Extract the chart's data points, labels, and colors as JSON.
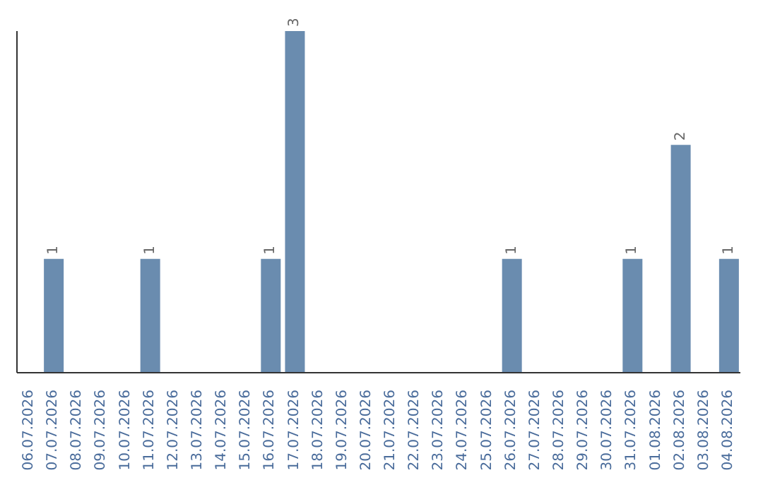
{
  "chart_data": {
    "type": "bar",
    "categories": [
      "06.07.2026",
      "07.07.2026",
      "08.07.2026",
      "09.07.2026",
      "10.07.2026",
      "11.07.2026",
      "12.07.2026",
      "13.07.2026",
      "14.07.2026",
      "15.07.2026",
      "16.07.2026",
      "17.07.2026",
      "18.07.2026",
      "19.07.2026",
      "20.07.2026",
      "21.07.2026",
      "22.07.2026",
      "23.07.2026",
      "24.07.2026",
      "25.07.2026",
      "26.07.2026",
      "27.07.2026",
      "28.07.2026",
      "29.07.2026",
      "30.07.2026",
      "31.07.2026",
      "01.08.2026",
      "02.08.2026",
      "03.08.2026",
      "04.08.2026"
    ],
    "values": [
      0,
      1,
      0,
      0,
      0,
      1,
      0,
      0,
      0,
      0,
      1,
      3,
      0,
      0,
      0,
      0,
      0,
      0,
      0,
      0,
      1,
      0,
      0,
      0,
      0,
      1,
      0,
      2,
      0,
      1
    ],
    "value_labels": [
      null,
      "1",
      null,
      null,
      null,
      "1",
      null,
      null,
      null,
      null,
      "1",
      "3",
      null,
      null,
      null,
      null,
      null,
      null,
      null,
      null,
      "1",
      null,
      null,
      null,
      null,
      "1",
      null,
      "2",
      null,
      "1"
    ],
    "color": "#6a8caf",
    "grid": false,
    "legend": false
  }
}
